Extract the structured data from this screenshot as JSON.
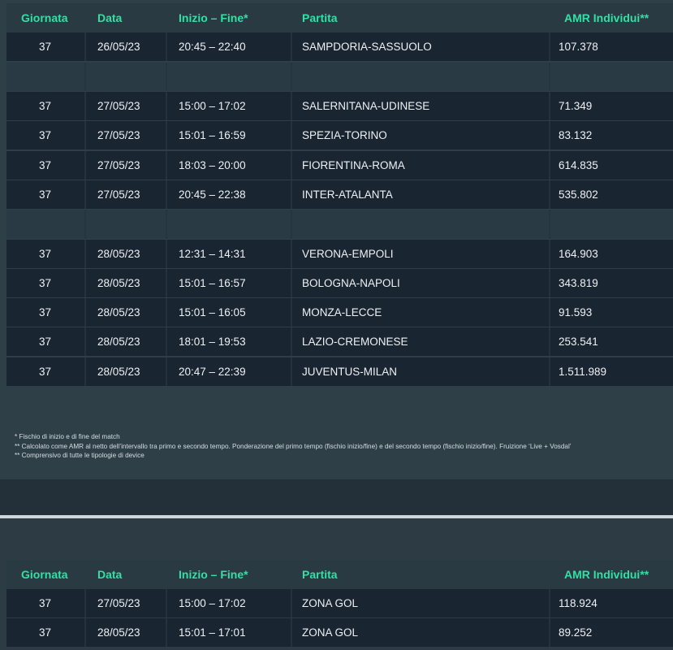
{
  "headers": {
    "giornata": "Giornata",
    "data": "Data",
    "orario": "Inizio – Fine*",
    "partita": "Partita",
    "amr": "AMR Individui**"
  },
  "top_rows": [
    {
      "giornata": "37",
      "data": "26/05/23",
      "orario": "20:45 – 22:40",
      "partita": "SAMPDORIA-SASSUOLO",
      "amr": "107.378"
    },
    {
      "giornata": "37",
      "data": "27/05/23",
      "orario": "15:00 – 17:02",
      "partita": "SALERNITANA-UDINESE",
      "amr": "71.349"
    },
    {
      "giornata": "37",
      "data": "27/05/23",
      "orario": "15:01 – 16:59",
      "partita": "SPEZIA-TORINO",
      "amr": "83.132"
    },
    {
      "giornata": "37",
      "data": "27/05/23",
      "orario": "18:03 – 20:00",
      "partita": "FIORENTINA-ROMA",
      "amr": "614.835"
    },
    {
      "giornata": "37",
      "data": "27/05/23",
      "orario": "20:45 – 22:38",
      "partita": "INTER-ATALANTA",
      "amr": "535.802"
    },
    {
      "giornata": "37",
      "data": "28/05/23",
      "orario": "12:31 – 14:31",
      "partita": "VERONA-EMPOLI",
      "amr": "164.903"
    },
    {
      "giornata": "37",
      "data": "28/05/23",
      "orario": "15:01 – 16:57",
      "partita": "BOLOGNA-NAPOLI",
      "amr": "343.819"
    },
    {
      "giornata": "37",
      "data": "28/05/23",
      "orario": "15:01 – 16:05",
      "partita": "MONZA-LECCE",
      "amr": "91.593"
    },
    {
      "giornata": "37",
      "data": "28/05/23",
      "orario": "18:01 – 19:53",
      "partita": "LAZIO-CREMONESE",
      "amr": "253.541"
    },
    {
      "giornata": "37",
      "data": "28/05/23",
      "orario": "20:47 – 22:39",
      "partita": "JUVENTUS-MILAN",
      "amr": "1.511.989"
    }
  ],
  "notes": [
    "* Fischio di inizio e di fine del match",
    "** Calcolato come AMR al netto dell’intervallo tra primo e secondo tempo. Ponderazione del primo tempo (fischio inizio/fine) e del secondo tempo (fischio inizio/fine). Fruizione ‘Live + Vosdal’",
    "** Comprensivo di tutte le tipologie di device"
  ],
  "bottom_rows": [
    {
      "giornata": "37",
      "data": "27/05/23",
      "orario": "15:00 – 17:02",
      "partita": "ZONA GOL",
      "amr": "118.924"
    },
    {
      "giornata": "37",
      "data": "28/05/23",
      "orario": "15:01 – 17:01",
      "partita": "ZONA GOL",
      "amr": "89.252"
    }
  ]
}
